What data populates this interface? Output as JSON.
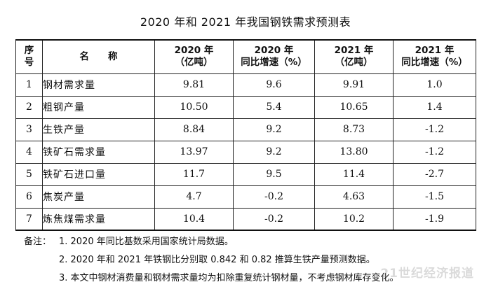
{
  "title": "2020 年和 2021 年我国钢铁需求预测表",
  "table": {
    "headers": [
      {
        "l1": "序",
        "l2": "号"
      },
      {
        "l1": "名　　称",
        "l2": ""
      },
      {
        "l1": "2020 年",
        "l2": "（亿吨）"
      },
      {
        "l1": "2020 年",
        "l2": "同比增速（%）"
      },
      {
        "l1": "2021 年",
        "l2": "（亿吨）"
      },
      {
        "l1": "2021 年",
        "l2": "同比增速（%）"
      }
    ],
    "rows": [
      [
        "1",
        "钢材需求量",
        "9.81",
        "9.6",
        "9.91",
        "1.0"
      ],
      [
        "2",
        "粗钢产量",
        "10.50",
        "5.4",
        "10.65",
        "1.4"
      ],
      [
        "3",
        "生铁产量",
        "8.84",
        "9.2",
        "8.73",
        "-1.2"
      ],
      [
        "4",
        "铁矿石需求量",
        "13.97",
        "9.2",
        "13.80",
        "-1.2"
      ],
      [
        "5",
        "铁矿石进口量",
        "11.7",
        "9.5",
        "11.4",
        "-2.7"
      ],
      [
        "6",
        "焦炭产量",
        "4.7",
        "-0.2",
        "4.63",
        "-1.5"
      ],
      [
        "7",
        "炼焦煤需求量",
        "10.4",
        "-0.2",
        "10.2",
        "-1.9"
      ]
    ]
  },
  "notes": {
    "label": "备注：",
    "items": [
      "1. 2020 年同比基数采用国家统计局数据。",
      "2. 2020 年和 2021 年铁钢比分别取 0.842 和 0.82 推算生铁产量预测数据。",
      "3. 本文中钢材消费量和钢材需求量均为扣除重复统计钢材量，不考虑钢材库存变化。"
    ]
  },
  "watermark": "21世纪经济报道"
}
